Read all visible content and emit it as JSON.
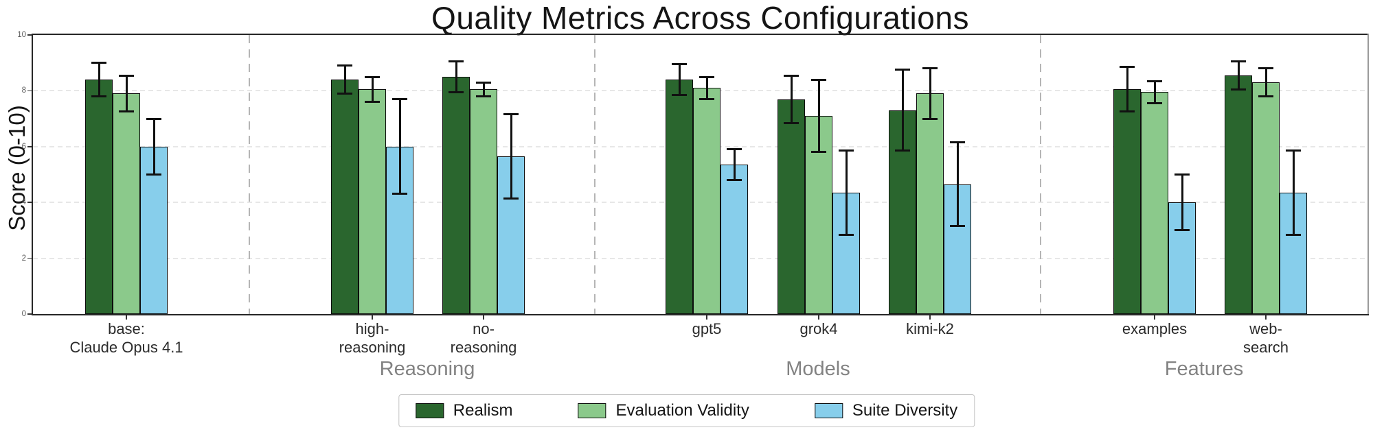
{
  "title": "Quality Metrics Across Configurations",
  "y_axis": {
    "label": "Score (0-10)",
    "tick_labels": [
      "0",
      "2",
      "4",
      "6",
      "8",
      "10"
    ]
  },
  "chart_data": {
    "type": "bar",
    "title": "Quality Metrics Across Configurations",
    "xlabel": "",
    "ylabel": "Score (0-10)",
    "ylim": [
      0,
      10
    ],
    "yticks": [
      0,
      2,
      4,
      6,
      8,
      10
    ],
    "grid": "horizontal dashed gridlines at 2,4,6,8",
    "error_bars": true,
    "legend_position": "bottom center, boxed",
    "categories": [
      "base: Claude Opus 4.1",
      "high-reasoning",
      "no-reasoning",
      "gpt5",
      "grok4",
      "kimi-k2",
      "examples",
      "web-search"
    ],
    "category_label_lines": [
      [
        "base:",
        "Claude Opus 4.1"
      ],
      [
        "high-",
        "reasoning"
      ],
      [
        "no-",
        "reasoning"
      ],
      [
        "gpt5"
      ],
      [
        "grok4"
      ],
      [
        "kimi-k2"
      ],
      [
        "examples"
      ],
      [
        "web-",
        "search"
      ]
    ],
    "sections": [
      {
        "label": "",
        "category_indexes": [
          0
        ]
      },
      {
        "label": "Reasoning",
        "category_indexes": [
          1,
          2
        ]
      },
      {
        "label": "Models",
        "category_indexes": [
          3,
          4,
          5
        ]
      },
      {
        "label": "Features",
        "category_indexes": [
          6,
          7
        ]
      }
    ],
    "series": [
      {
        "name": "Realism",
        "color": "#2a662e",
        "values": [
          8.4,
          8.4,
          8.5,
          8.4,
          7.7,
          7.3,
          8.05,
          8.55
        ],
        "errors": [
          0.6,
          0.5,
          0.55,
          0.55,
          0.85,
          1.45,
          0.8,
          0.5
        ]
      },
      {
        "name": "Evaluation Validity",
        "color": "#8bc98b",
        "values": [
          7.9,
          8.05,
          8.05,
          8.1,
          7.1,
          7.9,
          7.95,
          8.3
        ],
        "errors": [
          0.65,
          0.45,
          0.25,
          0.4,
          1.3,
          0.9,
          0.4,
          0.5
        ]
      },
      {
        "name": "Suite Diversity",
        "color": "#87ceeb",
        "values": [
          6.0,
          6.0,
          5.65,
          5.35,
          4.35,
          4.65,
          4.0,
          4.35
        ],
        "errors": [
          1.0,
          1.7,
          1.5,
          0.55,
          1.5,
          1.5,
          1.0,
          1.5
        ]
      }
    ]
  }
}
